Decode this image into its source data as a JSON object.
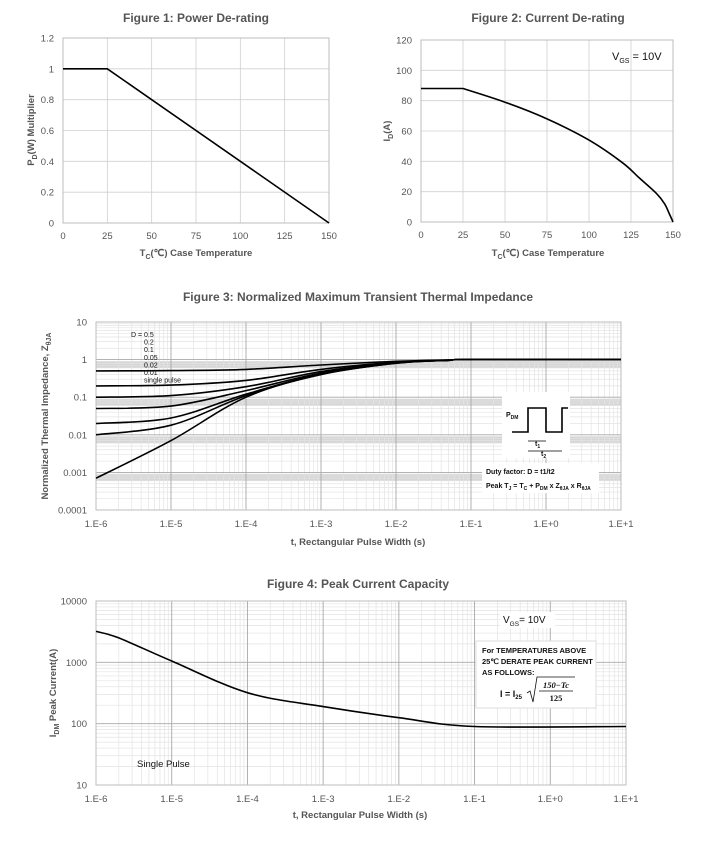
{
  "chart_data": [
    {
      "type": "line",
      "title": "Figure 1: Power De-rating",
      "xlabel": "TC(℃) Case Temperature",
      "ylabel": "PD(W) Multiplier",
      "xlim": [
        0,
        150
      ],
      "ylim": [
        0,
        1.2
      ],
      "xticks": [
        "0",
        "25",
        "50",
        "75",
        "100",
        "125",
        "150"
      ],
      "yticks": [
        "0",
        "0.2",
        "0.4",
        "0.6",
        "0.8",
        "1",
        "1.2"
      ],
      "x": [
        0,
        25,
        150
      ],
      "y": [
        1,
        1,
        0
      ]
    },
    {
      "type": "line",
      "title": "Figure 2: Current De-rating",
      "xlabel": "TC(℃) Case Temperature",
      "ylabel": "ID(A)",
      "annotation": "VGS = 10V",
      "xlim": [
        0,
        150
      ],
      "ylim": [
        0,
        120
      ],
      "xticks": [
        "0",
        "25",
        "50",
        "75",
        "100",
        "125",
        "150"
      ],
      "yticks": [
        "0",
        "20",
        "40",
        "60",
        "80",
        "100",
        "120"
      ],
      "x": [
        0,
        25,
        50,
        75,
        100,
        120,
        130,
        140,
        145,
        148,
        150
      ],
      "y": [
        88,
        88,
        79,
        68,
        54,
        39,
        29,
        19,
        12,
        5,
        0
      ]
    },
    {
      "type": "line",
      "xscale": "log",
      "yscale": "log",
      "title": "Figure 3: Normalized Maximum Transient Thermal Impedance",
      "xlabel": "t, Rectangular Pulse Width (s)",
      "ylabel": "Normalized Thermal Impedance, ZθJA",
      "xlim": [
        1e-06,
        10
      ],
      "ylim": [
        0.0001,
        10
      ],
      "xticks": [
        "1.E-6",
        "1.E-5",
        "1.E-4",
        "1.E-3",
        "1.E-2",
        "1.E-1",
        "1.E+0",
        "1.E+1"
      ],
      "yticks": [
        "0.0001",
        "0.001",
        "0.01",
        "0.1",
        "1",
        "10"
      ],
      "x": [
        1e-06,
        1e-05,
        0.0001,
        0.001,
        0.01,
        0.05,
        0.1,
        10
      ],
      "series": [
        {
          "name": "D = 0.5",
          "values": [
            0.5,
            0.51,
            0.55,
            0.72,
            0.9,
            0.98,
            1,
            1
          ]
        },
        {
          "name": "0.2",
          "values": [
            0.2,
            0.21,
            0.28,
            0.55,
            0.85,
            0.97,
            1,
            1
          ]
        },
        {
          "name": "0.1",
          "values": [
            0.1,
            0.11,
            0.19,
            0.48,
            0.83,
            0.96,
            1,
            1
          ]
        },
        {
          "name": "0.05",
          "values": [
            0.05,
            0.058,
            0.15,
            0.44,
            0.82,
            0.96,
            1,
            1
          ]
        },
        {
          "name": "0.02",
          "values": [
            0.02,
            0.028,
            0.12,
            0.42,
            0.81,
            0.96,
            1,
            1
          ]
        },
        {
          "name": "0.01",
          "values": [
            0.01,
            0.018,
            0.11,
            0.41,
            0.8,
            0.96,
            1,
            1
          ]
        },
        {
          "name": "single pulse",
          "values": [
            0.0007,
            0.007,
            0.1,
            0.4,
            0.8,
            0.96,
            1,
            1
          ]
        }
      ],
      "legend": [
        "D = 0.5",
        "0.2",
        "0.1",
        "0.05",
        "0.02",
        "0.01",
        "single pulse"
      ],
      "inset": {
        "pdm": "PDM",
        "t1": "t1",
        "t2": "t2",
        "duty": "Duty factor: D = t1/t2",
        "peak": "Peak TJ = TC + PDM x ZθJA x RθJA"
      }
    },
    {
      "type": "line",
      "xscale": "log",
      "yscale": "log",
      "title": "Figure 4: Peak Current Capacity",
      "xlabel": "t, Rectangular Pulse Width (s)",
      "ylabel": "IDM Peak Current(A)",
      "xlim": [
        1e-06,
        10
      ],
      "ylim": [
        10,
        10000
      ],
      "xticks": [
        "1.E-6",
        "1.E-5",
        "1.E-4",
        "1.E-3",
        "1.E-2",
        "1.E-1",
        "1.E+0",
        "1.E+1"
      ],
      "yticks": [
        "10",
        "100",
        "1000",
        "10000"
      ],
      "annotation": "VGS = 10V",
      "pulse_label": "Single Pulse",
      "note_lines": [
        "For TEMPERATURES ABOVE",
        "25℃ DERATE PEAK CURRENT",
        "AS FOLLOWS:"
      ],
      "formula": {
        "lhs": "I = I25",
        "numerator": "150−Tc",
        "denominator": "125"
      },
      "x": [
        1e-06,
        2e-06,
        1e-05,
        0.0001,
        0.001,
        0.01,
        0.1,
        10
      ],
      "y": [
        3200,
        2500,
        1050,
        320,
        190,
        125,
        90,
        90
      ]
    }
  ]
}
